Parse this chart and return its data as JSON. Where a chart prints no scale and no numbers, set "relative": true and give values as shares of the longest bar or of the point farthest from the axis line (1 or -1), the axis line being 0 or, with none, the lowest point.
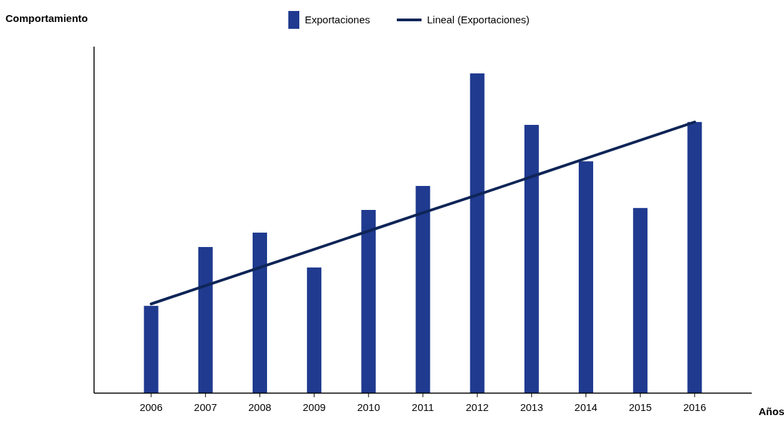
{
  "chart_data": {
    "type": "bar",
    "relative": true,
    "ylabel": "Comportamiento",
    "xlabel": "Años",
    "legend": "top",
    "categories": [
      "2006",
      "2007",
      "2008",
      "2009",
      "2010",
      "2011",
      "2012",
      "2013",
      "2014",
      "2015",
      "2016"
    ],
    "series": [
      {
        "name": "Exportaciones",
        "color": "#1f3a8f",
        "values": [
          0.273,
          0.457,
          0.502,
          0.393,
          0.573,
          0.648,
          1,
          0.839,
          0.725,
          0.579,
          0.848
        ]
      },
      {
        "name": "Lineal (Exportaciones)",
        "type": "line",
        "color": "#0f2557",
        "values": [
          0.279,
          0.336,
          0.393,
          0.45,
          0.507,
          0.564,
          0.62,
          0.677,
          0.734,
          0.791,
          0.848
        ]
      }
    ]
  }
}
